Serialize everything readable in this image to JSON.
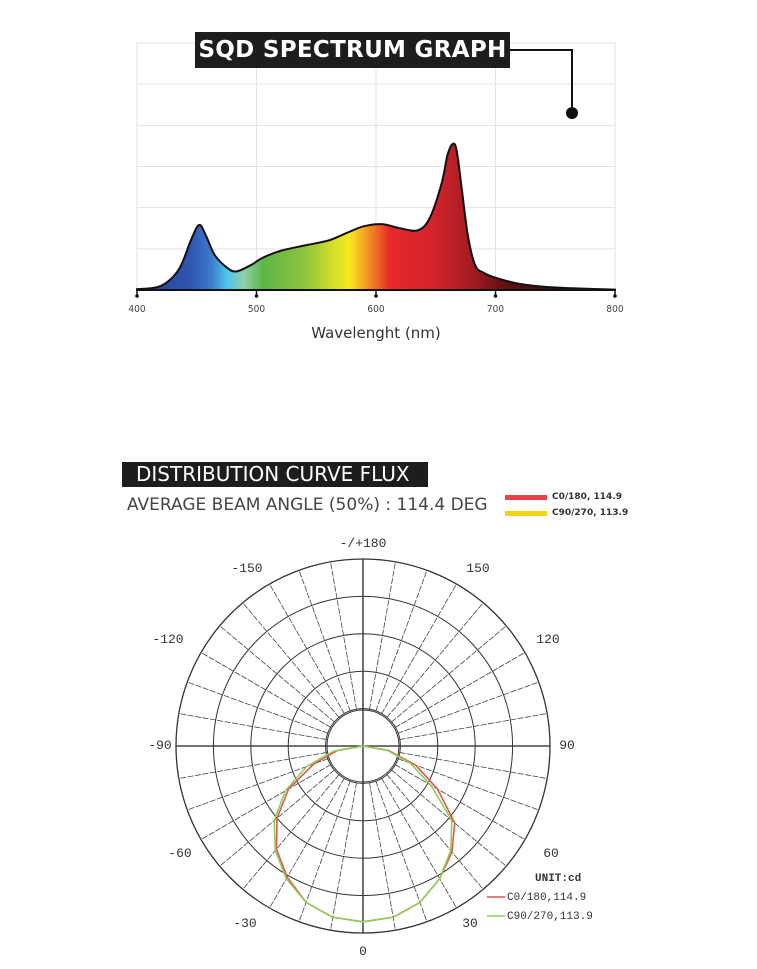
{
  "chart_data": [
    {
      "type": "area",
      "title": "SQD SPECTRUM GRAPH",
      "xlabel": "Wavelenght (nm)",
      "ylabel": "",
      "xlim": [
        400,
        800
      ],
      "ylim": [
        0,
        6
      ],
      "xticks": [
        "400",
        "500",
        "600",
        "700",
        "800"
      ],
      "grid": true,
      "x": [
        400,
        420,
        435,
        445,
        452,
        458,
        465,
        475,
        483,
        495,
        505,
        520,
        540,
        560,
        575,
        590,
        605,
        620,
        635,
        645,
        655,
        660,
        665,
        668,
        672,
        677,
        683,
        690,
        700,
        720,
        750,
        800
      ],
      "values": [
        0.02,
        0.1,
        0.5,
        1.2,
        1.58,
        1.3,
        0.85,
        0.55,
        0.45,
        0.6,
        0.78,
        0.95,
        1.08,
        1.2,
        1.38,
        1.55,
        1.6,
        1.5,
        1.45,
        1.75,
        2.6,
        3.3,
        3.56,
        3.3,
        2.4,
        1.3,
        0.6,
        0.42,
        0.3,
        0.15,
        0.06,
        0.01
      ]
    },
    {
      "type": "polar",
      "title": "DISTRIBUTION CURVE FLUX",
      "subtitle": "AVERAGE BEAM ANGLE  (50%) : 114.4 DEG",
      "unit": "UNIT:cd",
      "angle_labels": [
        "-/+180",
        "-150",
        "150",
        "-120",
        "120",
        "-90",
        "90",
        "-60",
        "60",
        "-30",
        "30",
        "0"
      ],
      "legend_top": [
        "C0/180, 114.9",
        "C90/270, 113.9"
      ],
      "series": [
        {
          "name": "C0/180,114.9",
          "color": "#e0574f",
          "angles": [
            -90,
            -80,
            -70,
            -60,
            -50,
            -40,
            -30,
            -20,
            -10,
            0,
            10,
            20,
            30,
            40,
            50,
            60,
            70,
            80,
            90
          ],
          "values": [
            0,
            0.7,
            1.4,
            2.3,
            3.0,
            3.6,
            4.05,
            4.45,
            4.65,
            4.7,
            4.65,
            4.45,
            4.1,
            3.7,
            3.2,
            2.3,
            1.5,
            0.7,
            0
          ]
        },
        {
          "name": "C90/270,113.9",
          "color": "#8ccf5a",
          "angles": [
            -90,
            -80,
            -70,
            -60,
            -50,
            -40,
            -30,
            -20,
            -10,
            0,
            10,
            20,
            30,
            40,
            50,
            60,
            70,
            80,
            90
          ],
          "values": [
            0,
            0.8,
            1.6,
            2.4,
            3.1,
            3.65,
            4.1,
            4.45,
            4.65,
            4.7,
            4.65,
            4.45,
            4.1,
            3.65,
            3.1,
            2.1,
            1.35,
            0.65,
            0
          ]
        }
      ],
      "legend_colors": [
        "#e8434a",
        "#f5d415"
      ]
    }
  ]
}
